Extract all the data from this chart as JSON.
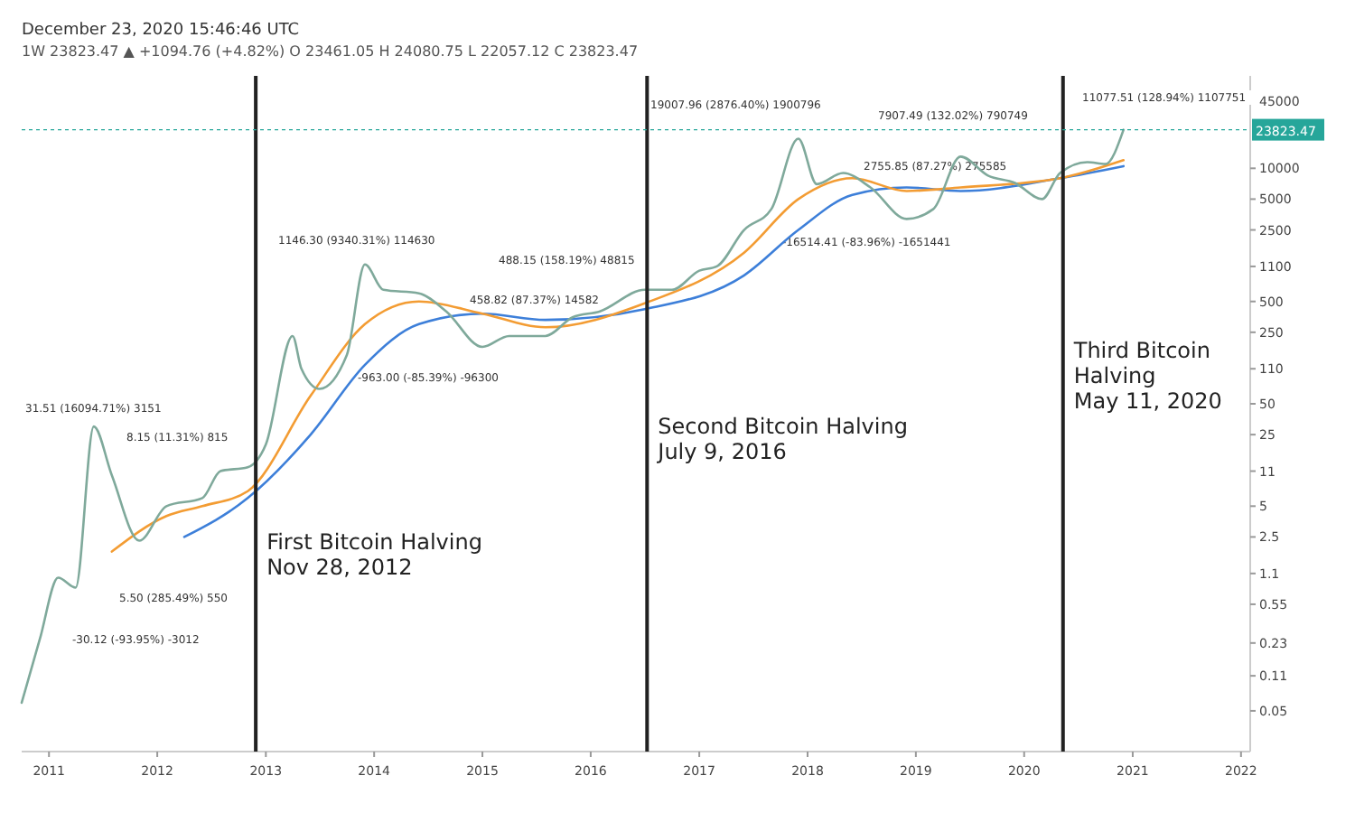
{
  "chart_data": {
    "type": "line",
    "title": "December 23, 2020 15:46:46 UTC",
    "subtitle": "1W 23823.47 ▲ +1094.76 (+4.82%) O 23461.05 H 24080.75 L 22057.12 C 23823.47",
    "log": "y",
    "xlim": [
      "2010-10",
      "2022-02"
    ],
    "ylim": [
      0.02,
      80000
    ],
    "xticks": [
      "2011",
      "2012",
      "2013",
      "2014",
      "2015",
      "2016",
      "2017",
      "2018",
      "2019",
      "2020",
      "2021",
      "2022"
    ],
    "yticks": [
      0.05,
      0.11,
      0.23,
      0.55,
      1.1,
      2.5,
      5,
      11,
      25,
      50,
      110,
      250,
      500,
      1100,
      2500,
      5000,
      10000,
      45000
    ],
    "series": [
      {
        "color": "#7fa99b",
        "x": [
          "2010-10",
          "2010-12",
          "2011-02",
          "2011-04",
          "2011-06",
          "2011-08",
          "2011-11",
          "2012-02",
          "2012-06",
          "2012-08",
          "2012-11",
          "2013-01",
          "2013-04",
          "2013-05",
          "2013-07",
          "2013-10",
          "2013-12",
          "2014-02",
          "2014-06",
          "2014-09",
          "2015-01",
          "2015-04",
          "2015-08",
          "2015-11",
          "2016-02",
          "2016-07",
          "2016-10",
          "2017-01",
          "2017-03",
          "2017-06",
          "2017-09",
          "2017-12",
          "2018-02",
          "2018-05",
          "2018-08",
          "2018-12",
          "2019-03",
          "2019-06",
          "2019-09",
          "2019-12",
          "2020-03",
          "2020-05",
          "2020-08",
          "2020-10",
          "2020-12"
        ],
        "values": [
          0.06,
          0.25,
          1,
          0.8,
          30,
          10,
          2.3,
          5,
          6,
          11,
          12,
          20,
          230,
          110,
          70,
          150,
          1150,
          650,
          600,
          400,
          180,
          230,
          230,
          350,
          400,
          650,
          650,
          1000,
          1100,
          2500,
          4000,
          19500,
          7000,
          9000,
          6500,
          3200,
          4000,
          13000,
          8500,
          7200,
          5000,
          9000,
          11500,
          11000,
          23800
        ]
      },
      {
        "color": "#f39c33",
        "x": [
          "2011-08",
          "2012-02",
          "2012-06",
          "2012-11",
          "2013-06",
          "2013-12",
          "2014-06",
          "2015-01",
          "2015-08",
          "2016-07",
          "2017-06",
          "2017-12",
          "2018-06",
          "2018-12",
          "2019-06",
          "2020-05",
          "2020-12"
        ],
        "values": [
          1.8,
          4,
          5,
          7,
          60,
          300,
          500,
          380,
          280,
          480,
          1500,
          5000,
          8000,
          6000,
          6500,
          8000,
          12000
        ]
      },
      {
        "color": "#3d7fd9",
        "x": [
          "2012-04",
          "2012-11",
          "2013-06",
          "2013-12",
          "2014-06",
          "2015-01",
          "2015-08",
          "2016-07",
          "2017-06",
          "2017-12",
          "2018-06",
          "2018-12",
          "2019-06",
          "2020-05",
          "2020-12"
        ],
        "values": [
          2.5,
          6,
          25,
          120,
          300,
          380,
          330,
          420,
          900,
          2500,
          5500,
          6500,
          6000,
          8000,
          10500
        ]
      }
    ],
    "ref_lines": [
      {
        "axis": "x",
        "value": "2012-11-28",
        "color": "#222222",
        "label": "First Bitcoin Halving\nNov 28, 2012"
      },
      {
        "axis": "x",
        "value": "2016-07-09",
        "color": "#222222",
        "label": "Second Bitcoin Halving\nJuly 9, 2016"
      },
      {
        "axis": "x",
        "value": "2020-05-11",
        "color": "#222222",
        "label": "Third Bitcoin Halving\nMay 11, 2020"
      },
      {
        "axis": "y",
        "value": 23823.47,
        "label": "23823.47",
        "color": "#26a69a"
      }
    ],
    "annotations": [
      "31.51 (16094.71%) 3151",
      "8.15 (11.31%) 815",
      "5.50 (285.49%) 550",
      "-30.12 (-93.95%) -3012",
      "1146.30 (9340.31%) 114630",
      "-963.00 (-85.39%) -96300",
      "458.82 (87.37%) 14582",
      "488.15 (158.19%) 48815",
      "19007.96 (2876.40%) 1900796",
      "2755.85 (87.27%) 275585",
      "-16514.41 (-83.96%) -1651441",
      "7907.49 (132.02%) 790749",
      "11077.51 (128.94%) 1107751"
    ]
  }
}
